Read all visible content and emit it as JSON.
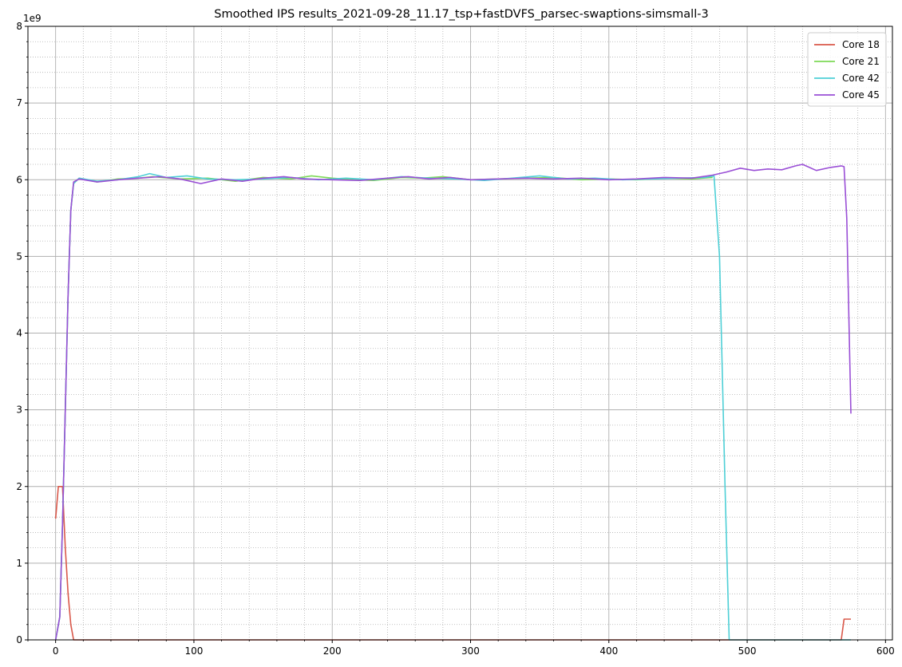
{
  "chart_data": {
    "type": "line",
    "title": "Smoothed IPS results_2021-09-28_11.17_tsp+fastDVFS_parsec-swaptions-simsmall-3",
    "xlabel": "",
    "ylabel": "",
    "y_offset_label": "1e9",
    "xlim": [
      -20,
      605
    ],
    "ylim": [
      0,
      8
    ],
    "x_ticks": [
      0,
      100,
      200,
      300,
      400,
      500,
      600
    ],
    "y_ticks": [
      0,
      1,
      2,
      3,
      4,
      5,
      6,
      7,
      8
    ],
    "x_minor_step": 20,
    "y_minor_step": 0.2,
    "grid": true,
    "legend_position": "top-right",
    "series": [
      {
        "name": "Core 18",
        "color": "#d9584a",
        "points": [
          [
            0,
            1.58
          ],
          [
            2,
            2.0
          ],
          [
            5,
            2.0
          ],
          [
            7,
            1.2
          ],
          [
            9,
            0.6
          ],
          [
            11,
            0.2
          ],
          [
            13,
            0.0
          ],
          [
            568,
            0.0
          ],
          [
            570,
            0.27
          ],
          [
            575,
            0.27
          ]
        ]
      },
      {
        "name": "Core 21",
        "color": "#7ed957",
        "points": [
          [
            0,
            0.0
          ],
          [
            3,
            0.3
          ],
          [
            5,
            1.5
          ],
          [
            7,
            3.0
          ],
          [
            9,
            4.5
          ],
          [
            11,
            5.6
          ],
          [
            13,
            5.95
          ],
          [
            17,
            6.02
          ],
          [
            30,
            5.97
          ],
          [
            45,
            6.01
          ],
          [
            60,
            6.02
          ],
          [
            70,
            6.04
          ],
          [
            90,
            6.01
          ],
          [
            110,
            6.02
          ],
          [
            130,
            5.98
          ],
          [
            150,
            6.03
          ],
          [
            170,
            6.01
          ],
          [
            185,
            6.05
          ],
          [
            200,
            6.02
          ],
          [
            215,
            6.0
          ],
          [
            230,
            5.99
          ],
          [
            250,
            6.03
          ],
          [
            265,
            6.02
          ],
          [
            280,
            6.04
          ],
          [
            300,
            6.0
          ],
          [
            320,
            6.01
          ],
          [
            340,
            6.02
          ],
          [
            360,
            6.03
          ],
          [
            380,
            6.0
          ],
          [
            400,
            6.01
          ],
          [
            420,
            6.0
          ],
          [
            440,
            6.02
          ],
          [
            460,
            6.01
          ],
          [
            475,
            6.03
          ]
        ]
      },
      {
        "name": "Core 42",
        "color": "#4dcfd6",
        "points": [
          [
            0,
            0.0
          ],
          [
            3,
            0.3
          ],
          [
            5,
            1.5
          ],
          [
            7,
            3.0
          ],
          [
            9,
            4.5
          ],
          [
            11,
            5.6
          ],
          [
            13,
            5.95
          ],
          [
            17,
            6.02
          ],
          [
            30,
            5.98
          ],
          [
            45,
            6.0
          ],
          [
            60,
            6.04
          ],
          [
            68,
            6.08
          ],
          [
            80,
            6.03
          ],
          [
            95,
            6.05
          ],
          [
            110,
            6.01
          ],
          [
            130,
            6.0
          ],
          [
            150,
            6.01
          ],
          [
            170,
            6.03
          ],
          [
            190,
            6.0
          ],
          [
            210,
            6.02
          ],
          [
            230,
            6.0
          ],
          [
            250,
            6.04
          ],
          [
            270,
            6.02
          ],
          [
            290,
            6.01
          ],
          [
            310,
            5.99
          ],
          [
            330,
            6.02
          ],
          [
            350,
            6.05
          ],
          [
            370,
            6.01
          ],
          [
            390,
            6.02
          ],
          [
            410,
            6.0
          ],
          [
            430,
            6.01
          ],
          [
            450,
            6.02
          ],
          [
            470,
            6.03
          ],
          [
            476,
            6.05
          ],
          [
            480,
            5.0
          ],
          [
            484,
            2.0
          ],
          [
            487,
            0.0
          ],
          [
            575,
            0.0
          ]
        ]
      },
      {
        "name": "Core 45",
        "color": "#9a4fd6",
        "points": [
          [
            0,
            0.0
          ],
          [
            3,
            0.3
          ],
          [
            5,
            1.5
          ],
          [
            7,
            3.0
          ],
          [
            9,
            4.5
          ],
          [
            11,
            5.6
          ],
          [
            13,
            5.97
          ],
          [
            17,
            6.01
          ],
          [
            30,
            5.97
          ],
          [
            45,
            6.0
          ],
          [
            60,
            6.02
          ],
          [
            75,
            6.04
          ],
          [
            90,
            6.01
          ],
          [
            105,
            5.95
          ],
          [
            120,
            6.01
          ],
          [
            135,
            5.98
          ],
          [
            150,
            6.02
          ],
          [
            165,
            6.04
          ],
          [
            180,
            6.01
          ],
          [
            200,
            6.0
          ],
          [
            220,
            5.99
          ],
          [
            240,
            6.02
          ],
          [
            255,
            6.04
          ],
          [
            270,
            6.01
          ],
          [
            285,
            6.03
          ],
          [
            300,
            6.0
          ],
          [
            320,
            6.01
          ],
          [
            340,
            6.02
          ],
          [
            360,
            6.01
          ],
          [
            380,
            6.02
          ],
          [
            400,
            6.0
          ],
          [
            420,
            6.01
          ],
          [
            440,
            6.03
          ],
          [
            460,
            6.02
          ],
          [
            475,
            6.06
          ],
          [
            485,
            6.1
          ],
          [
            495,
            6.15
          ],
          [
            505,
            6.12
          ],
          [
            515,
            6.14
          ],
          [
            525,
            6.13
          ],
          [
            535,
            6.18
          ],
          [
            540,
            6.2
          ],
          [
            550,
            6.12
          ],
          [
            560,
            6.16
          ],
          [
            568,
            6.18
          ],
          [
            570,
            6.17
          ],
          [
            572,
            5.5
          ],
          [
            575,
            2.95
          ]
        ]
      }
    ]
  }
}
